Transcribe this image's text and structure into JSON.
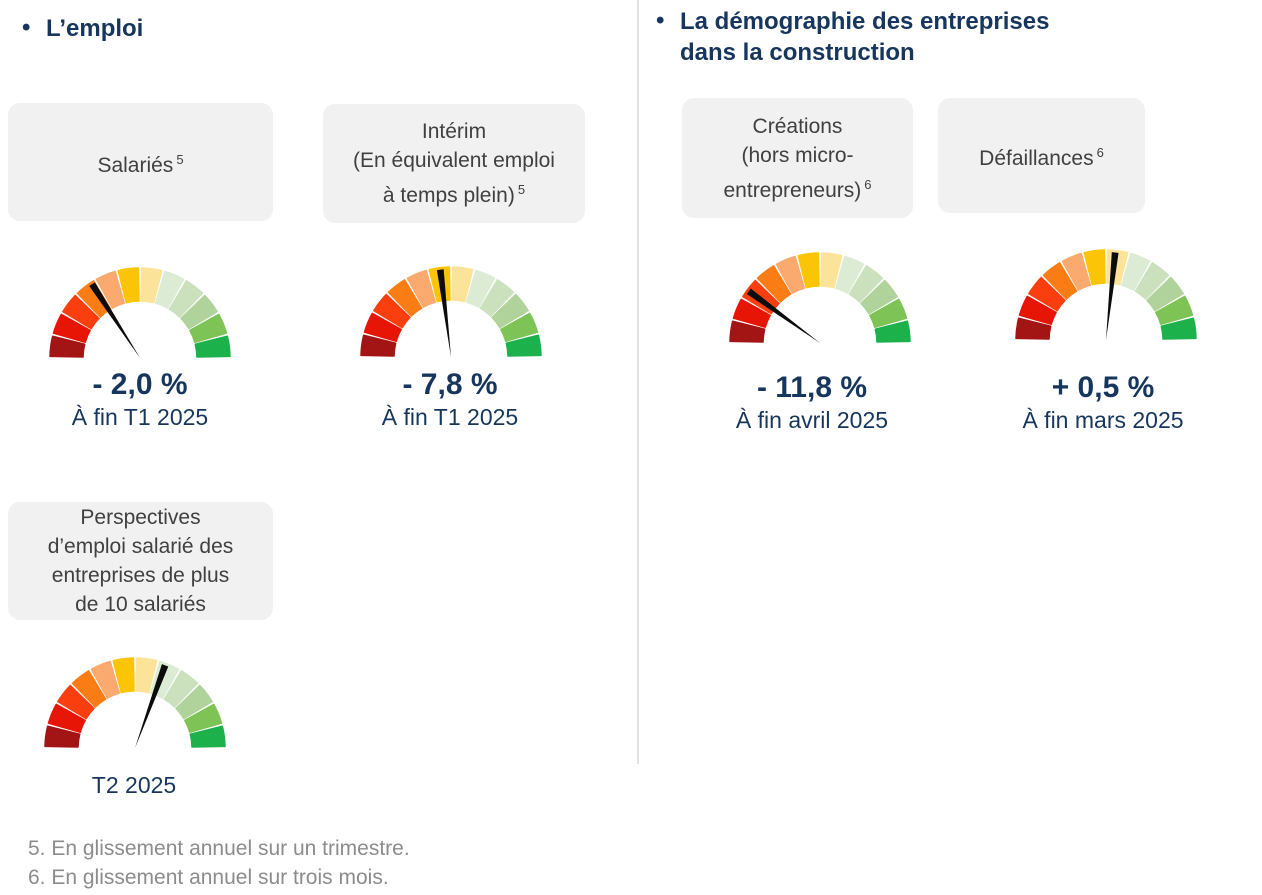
{
  "page": {
    "bullet": "•"
  },
  "sections": {
    "left": {
      "title": "L’emploi"
    },
    "right": {
      "title_line1": "La démographie des entreprises",
      "title_line2": "dans la construction"
    }
  },
  "cards": {
    "salaries": {
      "line1": "Salariés",
      "sup": "5"
    },
    "interim": {
      "line1": "Intérim",
      "line2": "(En équivalent emploi",
      "line3": "à temps plein)",
      "sup": "5"
    },
    "perspectives": {
      "line1": "Perspectives",
      "line2": "d’emploi salarié des",
      "line3": "entreprises de plus",
      "line4": "de 10 salariés"
    },
    "creations": {
      "line1": "Créations",
      "line2": "(hors micro-",
      "line3": "entrepreneurs)",
      "sup": "6"
    },
    "defaillances": {
      "line1": "Défaillances",
      "sup": "6"
    }
  },
  "gauge_style": {
    "segment_count": 12,
    "segment_colors": [
      "#a31414",
      "#e61505",
      "#fa3e0d",
      "#f97c15",
      "#faa96f",
      "#fcc406",
      "#fbe49a",
      "#dcebd3",
      "#cbe1bd",
      "#afd39b",
      "#7ec356",
      "#1db14c"
    ],
    "needle_color": "#0c0c0c",
    "scale_note": "semicircular dial, 12 segments from dark red (bad, left) to green (good, right)"
  },
  "chart_data": [
    {
      "type": "gauge",
      "name": "salaries",
      "title": "Salariés",
      "footnote_ref": "5",
      "value_label": "- 2,0 %",
      "value_percent": -2.0,
      "period": "À fin T1 2025",
      "needle_angle_deg": 123
    },
    {
      "type": "gauge",
      "name": "interim",
      "title": "Intérim (En équivalent emploi à temps plein)",
      "footnote_ref": "5",
      "value_label": "- 7,8 %",
      "value_percent": -7.8,
      "period": "À fin T1 2025",
      "needle_angle_deg": 97
    },
    {
      "type": "gauge",
      "name": "perspectives",
      "title": "Perspectives d’emploi salarié des entreprises de plus de 10 salariés",
      "value_label": "",
      "value_percent": null,
      "period": "T2 2025",
      "needle_angle_deg": 70
    },
    {
      "type": "gauge",
      "name": "creations",
      "title": "Créations (hors micro-entrepreneurs)",
      "footnote_ref": "6",
      "value_label": "- 11,8 %",
      "value_percent": -11.8,
      "period": "À fin avril 2025",
      "needle_angle_deg": 144
    },
    {
      "type": "gauge",
      "name": "defaillances",
      "title": "Défaillances",
      "footnote_ref": "6",
      "value_label": "+ 0,5 %",
      "value_percent": 0.5,
      "period": "À fin mars 2025",
      "needle_angle_deg": 84
    }
  ],
  "footnotes": [
    "5. En glissement annuel sur un trimestre.",
    "6. En glissement annuel sur trois mois."
  ]
}
